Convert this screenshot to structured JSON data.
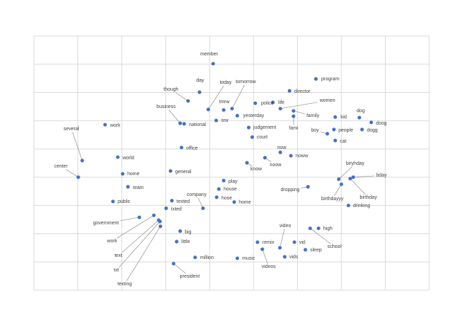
{
  "chart_data": {
    "type": "scatter",
    "color": "#4472c4",
    "grid": true,
    "xlim": [
      -5,
      4
    ],
    "ylim": [
      -4,
      5
    ],
    "xticks": [
      -5,
      -4,
      -3,
      -2,
      -1,
      0,
      1,
      2,
      3,
      4
    ],
    "yticks": [
      -4,
      -3,
      -2,
      -1,
      0,
      1,
      2,
      3,
      4,
      5
    ],
    "labels": [
      "member",
      "day",
      "today",
      "tomorrow",
      "though",
      "program",
      "director",
      "women",
      "police",
      "life",
      "tmrw",
      "yesterday",
      "family",
      "kid",
      "dog",
      "doog",
      "business",
      "national",
      "tmr",
      "work",
      "several",
      "fami",
      "judgement",
      "boy",
      "people",
      "dogg",
      "court",
      "cat",
      "office",
      "now",
      "noww",
      "world",
      "noow",
      "know",
      "center",
      "home",
      "general",
      "biryhday",
      "bday",
      "birthdayyy",
      "birthday",
      "play",
      "team",
      "house",
      "dropping",
      "company",
      "hose",
      "home",
      "public",
      "texted",
      "drinking",
      "txted",
      "government",
      "work",
      "text",
      "txt",
      "texting",
      "high",
      "school",
      "video",
      "big",
      "little",
      "remix",
      "vid",
      "sleep",
      "videos",
      "vids",
      "million",
      "music",
      "president"
    ],
    "x": [
      -0.92,
      -1.23,
      -1.03,
      -0.49,
      -1.49,
      1.42,
      0.82,
      0.61,
      0.04,
      0.44,
      -0.68,
      -0.37,
      0.91,
      1.86,
      2.41,
      2.68,
      -1.67,
      -1.58,
      -0.85,
      -3.38,
      -3.9,
      0.91,
      -0.11,
      1.68,
      1.83,
      2.47,
      -0.03,
      1.86,
      -1.64,
      0.61,
      0.85,
      -3.09,
      0.26,
      -0.15,
      -3.99,
      -2.98,
      -1.89,
      1.94,
      2.27,
      2.0,
      2.2,
      -0.68,
      -2.86,
      -0.79,
      1.24,
      -1.15,
      -0.84,
      -0.44,
      -3.2,
      -1.86,
      2.16,
      -1.99,
      -2.6,
      -2.27,
      -2.16,
      -2.13,
      -2.12,
      1.48,
      1.29,
      0.6,
      -1.67,
      -1.75,
      0.09,
      0.93,
      1.18,
      0.2,
      0.71,
      -1.33,
      -0.37,
      -1.82
    ],
    "values": [
      4.02,
      3.01,
      2.4,
      2.43,
      2.7,
      3.48,
      3.06,
      2.43,
      2.62,
      2.65,
      2.38,
      2.18,
      2.35,
      2.13,
      2.11,
      1.94,
      1.91,
      1.89,
      2.01,
      1.86,
      0.59,
      2.16,
      1.76,
      1.54,
      1.69,
      1.69,
      1.42,
      1.3,
      1.05,
      0.88,
      0.76,
      0.71,
      0.69,
      0.51,
      0.0,
      0.12,
      0.22,
      -0.07,
      0.0,
      -0.25,
      -0.05,
      -0.12,
      -0.34,
      -0.42,
      -0.34,
      -1.1,
      -0.71,
      -0.88,
      -0.86,
      -0.83,
      -1.0,
      -1.1,
      -1.42,
      -1.35,
      -1.52,
      -1.57,
      -1.74,
      -1.81,
      -1.81,
      -2.5,
      -1.91,
      -2.28,
      -2.3,
      -2.3,
      -2.57,
      -2.55,
      -2.82,
      -2.84,
      -2.87,
      -3.06
    ]
  }
}
